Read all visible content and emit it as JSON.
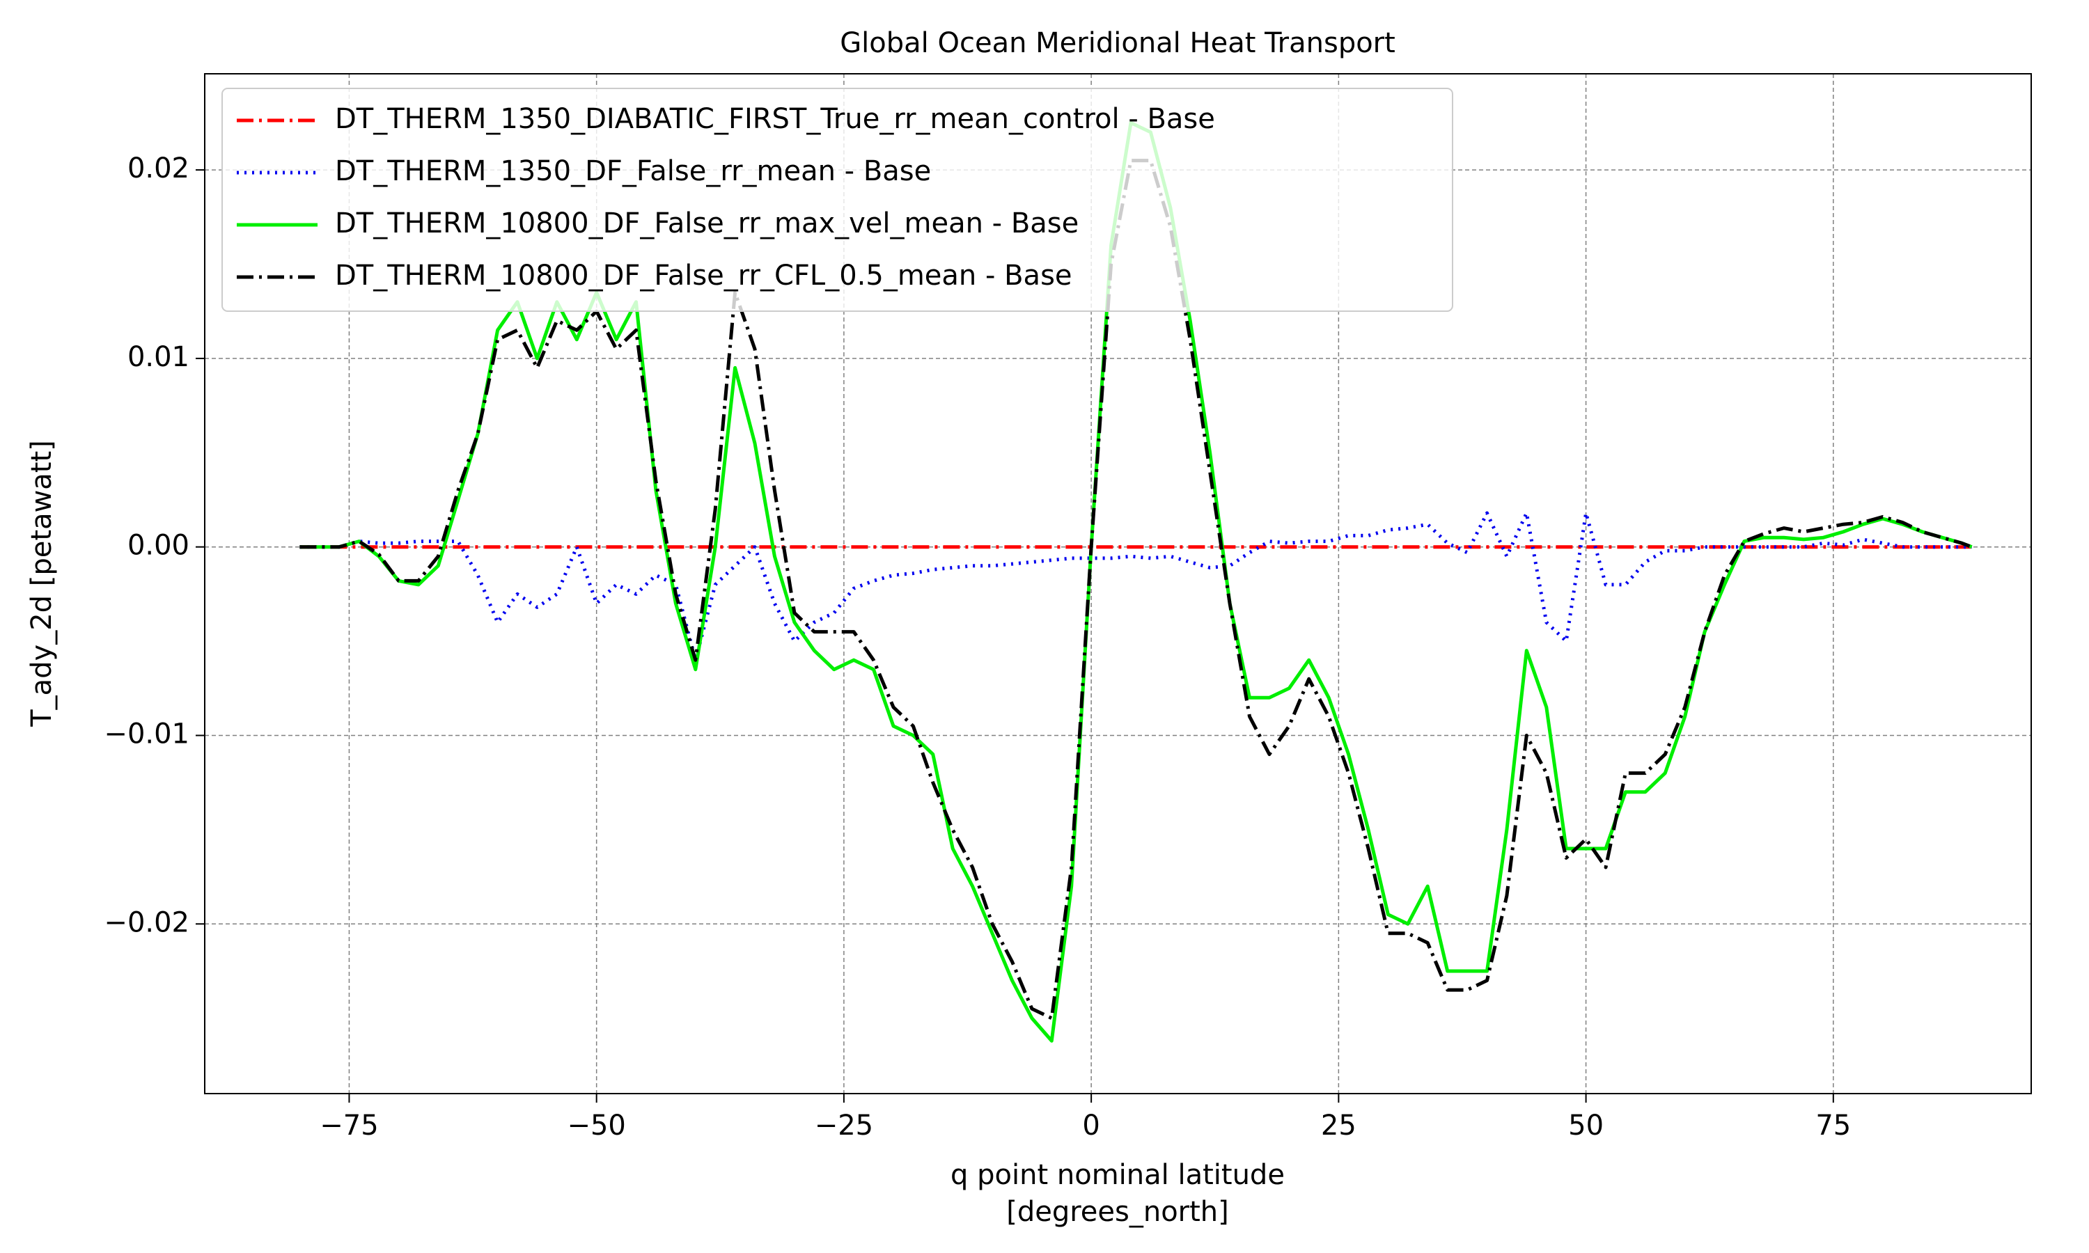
{
  "chart_data": {
    "type": "line",
    "title": "Global Ocean Meridional Heat Transport",
    "xlabel": [
      "q point nominal latitude",
      "[degrees_north]"
    ],
    "ylabel": "T_ady_2d [petawatt]",
    "xlim": [
      -89.6,
      95.0
    ],
    "ylim": [
      -0.029,
      0.0251
    ],
    "xticks": [
      {
        "value": -75,
        "label": "−75"
      },
      {
        "value": -50,
        "label": "−50"
      },
      {
        "value": -25,
        "label": "−25"
      },
      0,
      25,
      50,
      75
    ],
    "yticks": [
      {
        "value": -0.02,
        "label": "−0.02"
      },
      {
        "value": -0.01,
        "label": "−0.01"
      },
      {
        "value": 0,
        "label": "0.00"
      },
      0.01,
      0.02
    ],
    "grid": true,
    "legend": "upper left",
    "x": [
      -80,
      -78,
      -76,
      -74,
      -72,
      -70,
      -68,
      -66,
      -64,
      -62,
      -60,
      -58,
      -56,
      -54,
      -52,
      -50,
      -48,
      -46,
      -44,
      -42,
      -40,
      -38,
      -36,
      -34,
      -32,
      -30,
      -28,
      -26,
      -24,
      -22,
      -20,
      -18,
      -16,
      -14,
      -12,
      -10,
      -8,
      -6,
      -4,
      -2,
      0,
      2,
      4,
      6,
      8,
      10,
      12,
      14,
      16,
      18,
      20,
      22,
      24,
      26,
      28,
      30,
      32,
      34,
      36,
      38,
      40,
      42,
      44,
      46,
      48,
      50,
      52,
      54,
      56,
      58,
      60,
      62,
      64,
      66,
      68,
      70,
      72,
      74,
      76,
      78,
      80,
      82,
      84,
      86,
      88,
      89
    ],
    "series": [
      {
        "name": "DT_THERM_1350_DIABATIC_FIRST_True_rr_mean_control - Base",
        "color": "#ff0000",
        "style": "dashdot",
        "values": [
          0,
          0,
          0,
          0,
          0,
          0,
          0,
          0,
          0,
          0,
          0,
          0,
          0,
          0,
          0,
          0,
          0,
          0,
          0,
          0,
          0,
          0,
          0,
          0,
          0,
          0,
          0,
          0,
          0,
          0,
          0,
          0,
          0,
          0,
          0,
          0,
          0,
          0,
          0,
          0,
          0,
          0,
          0,
          0,
          0,
          0,
          0,
          0,
          0,
          0,
          0,
          0,
          0,
          0,
          0,
          0,
          0,
          0,
          0,
          0,
          0,
          0,
          0,
          0,
          0,
          0,
          0,
          0,
          0,
          0,
          0,
          0,
          0,
          0,
          0,
          0,
          0,
          0,
          0,
          0,
          0,
          0,
          0,
          0,
          0,
          0
        ]
      },
      {
        "name": "DT_THERM_1350_DF_False_rr_mean - Base",
        "color": "#0000ee",
        "style": "dotted",
        "values": [
          0,
          0,
          0,
          0.0003,
          0.0002,
          0.0002,
          0.0003,
          0.0003,
          0.0003,
          -0.0015,
          -0.004,
          -0.0025,
          -0.0032,
          -0.0025,
          0,
          -0.003,
          -0.002,
          -0.0025,
          -0.0015,
          -0.002,
          -0.006,
          -0.002,
          -0.001,
          0,
          -0.003,
          -0.005,
          -0.004,
          -0.0035,
          -0.0022,
          -0.0018,
          -0.0015,
          -0.0014,
          -0.0012,
          -0.0011,
          -0.001,
          -0.001,
          -0.0009,
          -0.0008,
          -0.0007,
          -0.0006,
          -0.0006,
          -0.0006,
          -0.0005,
          -0.0006,
          -0.0005,
          -0.0008,
          -0.0011,
          -0.001,
          -0.0003,
          0.0003,
          0.0002,
          0.0003,
          0.0003,
          0.0006,
          0.0006,
          0.0009,
          0.001,
          0.0012,
          0.0002,
          -0.0003,
          0.0018,
          -0.0005,
          0.0018,
          -0.004,
          -0.005,
          0.0018,
          -0.002,
          -0.002,
          -0.0008,
          -0.0002,
          -0.0002,
          0,
          0,
          0,
          0,
          0,
          0,
          0.0002,
          0.0001,
          0.0004,
          0.0002,
          0,
          0,
          0,
          0,
          0
        ]
      },
      {
        "name": "DT_THERM_10800_DF_False_rr_max_vel_mean - Base",
        "color": "#00ee00",
        "style": "solid",
        "values": [
          0,
          0,
          0,
          0.0003,
          -0.0005,
          -0.0018,
          -0.002,
          -0.001,
          0.0025,
          0.006,
          0.0115,
          0.013,
          0.01,
          0.013,
          0.011,
          0.0135,
          0.011,
          0.013,
          0.003,
          -0.003,
          -0.0065,
          0,
          0.0095,
          0.0055,
          -0.0005,
          -0.004,
          -0.0055,
          -0.0065,
          -0.006,
          -0.0065,
          -0.0095,
          -0.01,
          -0.011,
          -0.016,
          -0.018,
          -0.0205,
          -0.023,
          -0.025,
          -0.0262,
          -0.018,
          0,
          0.016,
          0.0225,
          0.022,
          0.018,
          0.012,
          0.005,
          -0.003,
          -0.008,
          -0.008,
          -0.0075,
          -0.006,
          -0.008,
          -0.011,
          -0.015,
          -0.0195,
          -0.02,
          -0.018,
          -0.0225,
          -0.0225,
          -0.0225,
          -0.015,
          -0.0055,
          -0.0085,
          -0.016,
          -0.016,
          -0.016,
          -0.013,
          -0.013,
          -0.012,
          -0.009,
          -0.0045,
          -0.002,
          0.0003,
          0.0005,
          0.0005,
          0.0004,
          0.0005,
          0.0008,
          0.0012,
          0.0015,
          0.0012,
          0.0008,
          0.0005,
          0.0002,
          0
        ]
      },
      {
        "name": "DT_THERM_10800_DF_False_rr_CFL_0.5_mean - Base",
        "color": "#000000",
        "style": "dashdot",
        "values": [
          0,
          0,
          0,
          0.0003,
          -0.0004,
          -0.0018,
          -0.0018,
          -0.0005,
          0.003,
          0.006,
          0.011,
          0.0115,
          0.0095,
          0.012,
          0.0115,
          0.0125,
          0.0105,
          0.0115,
          0.0035,
          -0.0025,
          -0.006,
          0.002,
          0.0135,
          0.0105,
          0.003,
          -0.0035,
          -0.0045,
          -0.0045,
          -0.0045,
          -0.006,
          -0.0085,
          -0.0095,
          -0.0125,
          -0.015,
          -0.017,
          -0.02,
          -0.022,
          -0.0245,
          -0.025,
          -0.017,
          0,
          0.015,
          0.0205,
          0.0205,
          0.017,
          0.011,
          0.004,
          -0.003,
          -0.009,
          -0.011,
          -0.0095,
          -0.007,
          -0.009,
          -0.012,
          -0.016,
          -0.0205,
          -0.0205,
          -0.021,
          -0.0235,
          -0.0235,
          -0.023,
          -0.0185,
          -0.01,
          -0.012,
          -0.0165,
          -0.0155,
          -0.017,
          -0.012,
          -0.012,
          -0.011,
          -0.0085,
          -0.0045,
          -0.0015,
          0.0003,
          0.0007,
          0.001,
          0.0008,
          0.001,
          0.0012,
          0.0013,
          0.0016,
          0.0013,
          0.0008,
          0.0005,
          0.0002,
          0
        ]
      }
    ]
  }
}
